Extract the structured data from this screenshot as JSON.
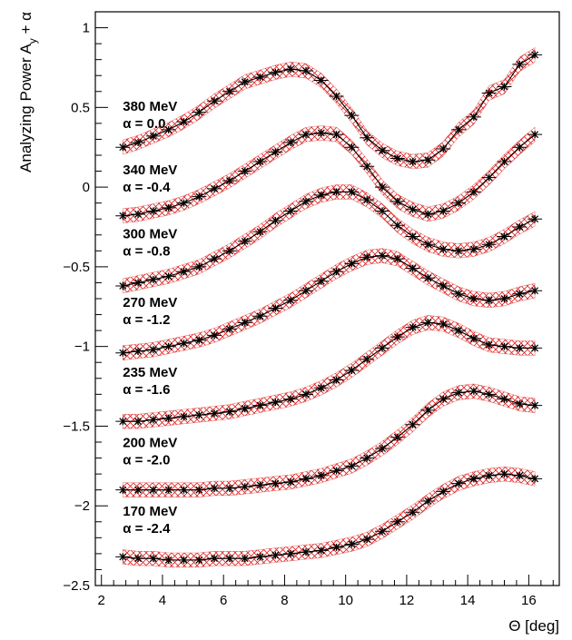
{
  "chart_data": {
    "type": "line",
    "title": "",
    "xlabel": "Θ [deg]",
    "ylabel_main": "Analyzing Power A",
    "ylabel_sub": "y",
    "ylabel_tail": " + α",
    "xlim": [
      1.8,
      17.0
    ],
    "ylim": [
      -2.5,
      1.1
    ],
    "x_ticks": [
      2,
      4,
      6,
      8,
      10,
      12,
      14,
      16
    ],
    "x_tick_labels": [
      "2",
      "4",
      "6",
      "8",
      "10",
      "12",
      "14",
      "16"
    ],
    "y_ticks": [
      1,
      0.5,
      0,
      -0.5,
      -1,
      -1.5,
      -2,
      -2.5
    ],
    "y_tick_labels": [
      "1",
      "0.5",
      "0",
      "−0.5",
      "−1",
      "−1.5",
      "−2",
      "−2.5"
    ],
    "grid": false,
    "colors": {
      "band": "#dd2222",
      "line": "#000000",
      "marker": "#000000"
    },
    "band_halfwidth": 0.045,
    "series": [
      {
        "energy": "380 MeV",
        "alpha": "α = 0.0",
        "label_at": [
          2.7,
          0.48
        ],
        "points": [
          [
            2.7,
            0.25
          ],
          [
            3.2,
            0.28
          ],
          [
            3.7,
            0.32
          ],
          [
            4.2,
            0.36
          ],
          [
            4.7,
            0.41
          ],
          [
            5.2,
            0.47
          ],
          [
            5.7,
            0.54
          ],
          [
            6.2,
            0.6
          ],
          [
            6.7,
            0.66
          ],
          [
            7.2,
            0.69
          ],
          [
            7.7,
            0.72
          ],
          [
            8.2,
            0.74
          ],
          [
            8.7,
            0.73
          ],
          [
            9.2,
            0.67
          ],
          [
            9.7,
            0.57
          ],
          [
            10.2,
            0.45
          ],
          [
            10.7,
            0.31
          ],
          [
            11.2,
            0.23
          ],
          [
            11.7,
            0.18
          ],
          [
            12.2,
            0.16
          ],
          [
            12.7,
            0.17
          ],
          [
            13.2,
            0.24
          ],
          [
            13.7,
            0.36
          ],
          [
            14.2,
            0.44
          ],
          [
            14.7,
            0.59
          ],
          [
            15.2,
            0.63
          ],
          [
            15.7,
            0.77
          ],
          [
            16.2,
            0.83
          ]
        ]
      },
      {
        "energy": "340 MeV",
        "alpha": "α = -0.4",
        "label_at": [
          2.7,
          0.08
        ],
        "points": [
          [
            2.7,
            -0.18
          ],
          [
            3.2,
            -0.17
          ],
          [
            3.7,
            -0.15
          ],
          [
            4.2,
            -0.13
          ],
          [
            4.7,
            -0.1
          ],
          [
            5.2,
            -0.06
          ],
          [
            5.7,
            -0.01
          ],
          [
            6.2,
            0.04
          ],
          [
            6.7,
            0.1
          ],
          [
            7.2,
            0.16
          ],
          [
            7.7,
            0.22
          ],
          [
            8.2,
            0.28
          ],
          [
            8.7,
            0.33
          ],
          [
            9.2,
            0.34
          ],
          [
            9.7,
            0.33
          ],
          [
            10.2,
            0.25
          ],
          [
            10.7,
            0.13
          ],
          [
            11.2,
            0.0
          ],
          [
            11.7,
            -0.09
          ],
          [
            12.2,
            -0.14
          ],
          [
            12.7,
            -0.17
          ],
          [
            13.2,
            -0.15
          ],
          [
            13.7,
            -0.1
          ],
          [
            14.2,
            -0.03
          ],
          [
            14.7,
            0.06
          ],
          [
            15.2,
            0.16
          ],
          [
            15.7,
            0.25
          ],
          [
            16.2,
            0.33
          ]
        ]
      },
      {
        "energy": "300 MeV",
        "alpha": "α = -0.8",
        "label_at": [
          2.7,
          -0.32
        ],
        "points": [
          [
            2.7,
            -0.62
          ],
          [
            3.2,
            -0.6
          ],
          [
            3.7,
            -0.58
          ],
          [
            4.2,
            -0.56
          ],
          [
            4.7,
            -0.53
          ],
          [
            5.2,
            -0.5
          ],
          [
            5.7,
            -0.45
          ],
          [
            6.2,
            -0.4
          ],
          [
            6.7,
            -0.34
          ],
          [
            7.2,
            -0.28
          ],
          [
            7.7,
            -0.21
          ],
          [
            8.2,
            -0.15
          ],
          [
            8.7,
            -0.09
          ],
          [
            9.2,
            -0.05
          ],
          [
            9.7,
            -0.03
          ],
          [
            10.2,
            -0.03
          ],
          [
            10.7,
            -0.08
          ],
          [
            11.2,
            -0.15
          ],
          [
            11.7,
            -0.24
          ],
          [
            12.2,
            -0.31
          ],
          [
            12.7,
            -0.36
          ],
          [
            13.2,
            -0.39
          ],
          [
            13.7,
            -0.4
          ],
          [
            14.2,
            -0.39
          ],
          [
            14.7,
            -0.36
          ],
          [
            15.2,
            -0.31
          ],
          [
            15.7,
            -0.25
          ],
          [
            16.2,
            -0.2
          ]
        ]
      },
      {
        "energy": "270 MeV",
        "alpha": "α = -1.2",
        "label_at": [
          2.7,
          -0.75
        ],
        "points": [
          [
            2.7,
            -1.04
          ],
          [
            3.2,
            -1.03
          ],
          [
            3.7,
            -1.02
          ],
          [
            4.2,
            -1.0
          ],
          [
            4.7,
            -0.98
          ],
          [
            5.2,
            -0.96
          ],
          [
            5.7,
            -0.93
          ],
          [
            6.2,
            -0.89
          ],
          [
            6.7,
            -0.85
          ],
          [
            7.2,
            -0.81
          ],
          [
            7.7,
            -0.76
          ],
          [
            8.2,
            -0.71
          ],
          [
            8.7,
            -0.65
          ],
          [
            9.2,
            -0.59
          ],
          [
            9.7,
            -0.53
          ],
          [
            10.2,
            -0.48
          ],
          [
            10.7,
            -0.44
          ],
          [
            11.2,
            -0.43
          ],
          [
            11.7,
            -0.45
          ],
          [
            12.2,
            -0.51
          ],
          [
            12.7,
            -0.57
          ],
          [
            13.2,
            -0.62
          ],
          [
            13.7,
            -0.67
          ],
          [
            14.2,
            -0.7
          ],
          [
            14.7,
            -0.71
          ],
          [
            15.2,
            -0.7
          ],
          [
            15.7,
            -0.67
          ],
          [
            16.2,
            -0.65
          ]
        ]
      },
      {
        "energy": "235 MeV",
        "alpha": "α = -1.6",
        "label_at": [
          2.7,
          -1.19
        ],
        "points": [
          [
            2.7,
            -1.47
          ],
          [
            3.2,
            -1.47
          ],
          [
            3.7,
            -1.46
          ],
          [
            4.2,
            -1.45
          ],
          [
            4.7,
            -1.44
          ],
          [
            5.2,
            -1.43
          ],
          [
            5.7,
            -1.42
          ],
          [
            6.2,
            -1.41
          ],
          [
            6.7,
            -1.39
          ],
          [
            7.2,
            -1.37
          ],
          [
            7.7,
            -1.35
          ],
          [
            8.2,
            -1.33
          ],
          [
            8.7,
            -1.3
          ],
          [
            9.2,
            -1.26
          ],
          [
            9.7,
            -1.21
          ],
          [
            10.2,
            -1.15
          ],
          [
            10.7,
            -1.08
          ],
          [
            11.2,
            -1.01
          ],
          [
            11.7,
            -0.94
          ],
          [
            12.2,
            -0.88
          ],
          [
            12.7,
            -0.85
          ],
          [
            13.2,
            -0.86
          ],
          [
            13.7,
            -0.9
          ],
          [
            14.2,
            -0.95
          ],
          [
            14.7,
            -0.99
          ],
          [
            15.2,
            -1.0
          ],
          [
            15.7,
            -1.01
          ],
          [
            16.2,
            -1.01
          ]
        ]
      },
      {
        "energy": "200 MeV",
        "alpha": "α = -2.0",
        "label_at": [
          2.7,
          -1.63
        ],
        "points": [
          [
            2.7,
            -1.9
          ],
          [
            3.2,
            -1.9
          ],
          [
            3.7,
            -1.9
          ],
          [
            4.2,
            -1.9
          ],
          [
            4.7,
            -1.9
          ],
          [
            5.2,
            -1.9
          ],
          [
            5.7,
            -1.89
          ],
          [
            6.2,
            -1.89
          ],
          [
            6.7,
            -1.88
          ],
          [
            7.2,
            -1.87
          ],
          [
            7.7,
            -1.86
          ],
          [
            8.2,
            -1.85
          ],
          [
            8.7,
            -1.83
          ],
          [
            9.2,
            -1.81
          ],
          [
            9.7,
            -1.78
          ],
          [
            10.2,
            -1.75
          ],
          [
            10.7,
            -1.7
          ],
          [
            11.2,
            -1.64
          ],
          [
            11.7,
            -1.57
          ],
          [
            12.2,
            -1.49
          ],
          [
            12.7,
            -1.4
          ],
          [
            13.2,
            -1.33
          ],
          [
            13.7,
            -1.29
          ],
          [
            14.2,
            -1.28
          ],
          [
            14.7,
            -1.3
          ],
          [
            15.2,
            -1.33
          ],
          [
            15.7,
            -1.36
          ],
          [
            16.2,
            -1.37
          ]
        ]
      },
      {
        "energy": "170 MeV",
        "alpha": "α = -2.4",
        "label_at": [
          2.7,
          -2.06
        ],
        "points": [
          [
            2.7,
            -2.32
          ],
          [
            3.2,
            -2.33
          ],
          [
            3.7,
            -2.33
          ],
          [
            4.2,
            -2.34
          ],
          [
            4.7,
            -2.34
          ],
          [
            5.2,
            -2.34
          ],
          [
            5.7,
            -2.33
          ],
          [
            6.2,
            -2.33
          ],
          [
            6.7,
            -2.33
          ],
          [
            7.2,
            -2.32
          ],
          [
            7.7,
            -2.31
          ],
          [
            8.2,
            -2.3
          ],
          [
            8.7,
            -2.29
          ],
          [
            9.2,
            -2.28
          ],
          [
            9.7,
            -2.26
          ],
          [
            10.2,
            -2.24
          ],
          [
            10.7,
            -2.21
          ],
          [
            11.2,
            -2.16
          ],
          [
            11.7,
            -2.1
          ],
          [
            12.2,
            -2.04
          ],
          [
            12.7,
            -1.97
          ],
          [
            13.2,
            -1.91
          ],
          [
            13.7,
            -1.86
          ],
          [
            14.2,
            -1.83
          ],
          [
            14.7,
            -1.81
          ],
          [
            15.2,
            -1.8
          ],
          [
            15.7,
            -1.81
          ],
          [
            16.2,
            -1.83
          ]
        ]
      }
    ]
  }
}
